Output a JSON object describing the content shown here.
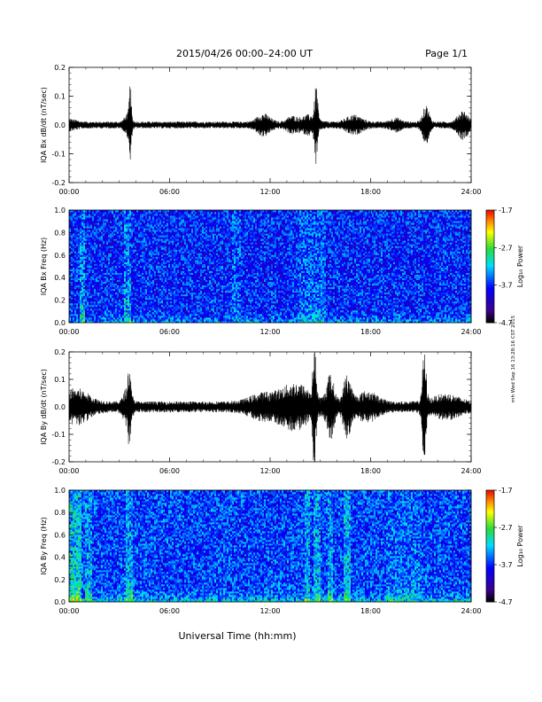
{
  "header": {
    "title": "2015/04/26  00:00–24:00 UT",
    "page": "Page 1/1"
  },
  "side_stamp": "rnh Wed Sep 16 13:28:16 CST 2015",
  "chart_data": [
    {
      "type": "line",
      "ylabel": "IQA Bx dB/dt (nT/sec)",
      "xlabel": "",
      "x_unit": "UT hours",
      "xlim": [
        0,
        24
      ],
      "xticks": [
        "00:00",
        "06:00",
        "12:00",
        "18:00",
        "24:00"
      ],
      "ylim": [
        -0.2,
        0.2
      ],
      "yticks": [
        "0.2",
        "0.1",
        "0.0",
        "-0.1",
        "-0.2"
      ],
      "noise_amplitude": 0.012,
      "events": [
        {
          "x": 0.0,
          "hw": 0.6,
          "amp": 0.01
        },
        {
          "x": 3.5,
          "hw": 0.25,
          "amp": 0.03
        },
        {
          "x": 3.65,
          "hw": 0.08,
          "amp": 0.12
        },
        {
          "x": 11.6,
          "hw": 0.5,
          "amp": 0.03
        },
        {
          "x": 13.3,
          "hw": 0.4,
          "amp": 0.02
        },
        {
          "x": 14.3,
          "hw": 0.6,
          "amp": 0.025
        },
        {
          "x": 14.75,
          "hw": 0.12,
          "amp": 0.12
        },
        {
          "x": 17.0,
          "hw": 0.6,
          "amp": 0.025
        },
        {
          "x": 19.5,
          "hw": 0.4,
          "amp": 0.015
        },
        {
          "x": 21.3,
          "hw": 0.25,
          "amp": 0.06
        },
        {
          "x": 23.5,
          "hw": 0.4,
          "amp": 0.04
        }
      ]
    },
    {
      "type": "heatmap",
      "ylabel": "IQA Bx Freq (Hz)",
      "xlim": [
        0,
        24
      ],
      "xticks": [
        "00:00",
        "06:00",
        "12:00",
        "18:00",
        "24:00"
      ],
      "ylim": [
        0.0,
        1.0
      ],
      "yticks": [
        "1.0",
        "0.8",
        "0.6",
        "0.4",
        "0.2",
        "0.0"
      ],
      "colorbar": {
        "label": "Log₁₀ Power",
        "range": [
          -4.7,
          -1.7
        ],
        "ticks": [
          "-1.7",
          "-2.7",
          "-3.7",
          "-4.7"
        ]
      },
      "base_level": -3.75,
      "low_freq_enhancement": 0.45,
      "bands": [
        {
          "x": 0.8,
          "w": 0.15,
          "boost": 0.55
        },
        {
          "x": 3.5,
          "w": 0.35,
          "boost": 0.5
        },
        {
          "x": 10.0,
          "w": 0.5,
          "boost": 0.25
        },
        {
          "x": 14.5,
          "w": 1.5,
          "boost": 0.3
        }
      ]
    },
    {
      "type": "line",
      "ylabel": "IQA By dB/dt (nT/sec)",
      "xlim": [
        0,
        24
      ],
      "xticks": [
        "00:00",
        "06:00",
        "12:00",
        "18:00",
        "24:00"
      ],
      "ylim": [
        -0.2,
        0.2
      ],
      "yticks": [
        "0.2",
        "0.1",
        "0.0",
        "-0.1",
        "-0.2"
      ],
      "noise_amplitude": 0.02,
      "events": [
        {
          "x": 0.4,
          "hw": 1.0,
          "amp": 0.05
        },
        {
          "x": 3.5,
          "hw": 0.3,
          "amp": 0.06
        },
        {
          "x": 3.6,
          "hw": 0.08,
          "amp": 0.12
        },
        {
          "x": 11.5,
          "hw": 1.0,
          "amp": 0.03
        },
        {
          "x": 13.5,
          "hw": 1.2,
          "amp": 0.07
        },
        {
          "x": 14.65,
          "hw": 0.12,
          "amp": 0.2
        },
        {
          "x": 15.6,
          "hw": 0.3,
          "amp": 0.1
        },
        {
          "x": 16.6,
          "hw": 0.3,
          "amp": 0.1
        },
        {
          "x": 17.8,
          "hw": 0.8,
          "amp": 0.04
        },
        {
          "x": 21.2,
          "hw": 0.15,
          "amp": 0.18
        },
        {
          "x": 22.5,
          "hw": 1.0,
          "amp": 0.03
        }
      ]
    },
    {
      "type": "heatmap",
      "ylabel": "IQA By Freq (Hz)",
      "xlim": [
        0,
        24
      ],
      "xticks": [
        "00:00",
        "06:00",
        "12:00",
        "18:00",
        "24:00"
      ],
      "ylim": [
        0.0,
        1.0
      ],
      "yticks": [
        "1.0",
        "0.8",
        "0.6",
        "0.4",
        "0.2",
        "0.0"
      ],
      "colorbar": {
        "label": "Log₁₀ Power",
        "range": [
          -4.7,
          -1.7
        ],
        "ticks": [
          "-1.7",
          "-2.7",
          "-3.7",
          "-4.7"
        ]
      },
      "base_level": -3.65,
      "low_freq_enhancement": 0.6,
      "bands": [
        {
          "x": 0.3,
          "w": 0.8,
          "boost": 0.75
        },
        {
          "x": 1.2,
          "w": 0.3,
          "boost": 0.5
        },
        {
          "x": 3.6,
          "w": 0.25,
          "boost": 0.55
        },
        {
          "x": 14.2,
          "w": 0.25,
          "boost": 0.5
        },
        {
          "x": 14.8,
          "w": 0.25,
          "boost": 0.55
        },
        {
          "x": 15.6,
          "w": 0.25,
          "boost": 0.5
        },
        {
          "x": 16.6,
          "w": 0.35,
          "boost": 0.6
        },
        {
          "x": 20.0,
          "w": 2.0,
          "boost": 0.2
        }
      ]
    }
  ],
  "xaxis_title": "Universal Time (hh:mm)"
}
